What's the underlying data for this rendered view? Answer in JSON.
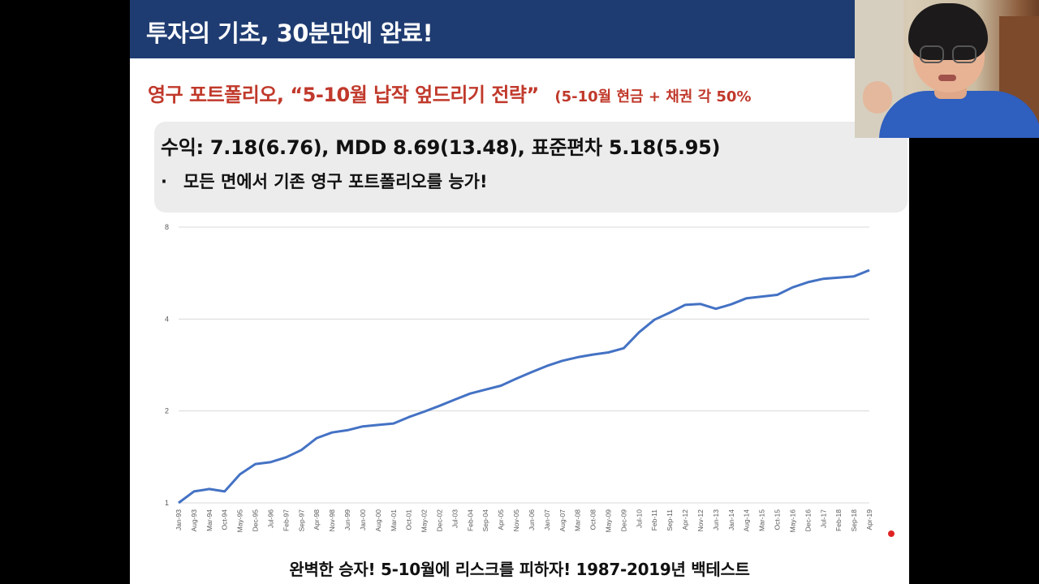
{
  "slide": {
    "header_title": "투자의 기초, 30분만에 완료!",
    "subtitle_main": "영구 포트폴리오, “5-10월 납작 엎드리기 전략”",
    "subtitle_sub": "(5-10월 현금 + 채권 각 50%",
    "summary_line": "수익: 7.18(6.76), MDD 8.69(13.48), 표준편차 5.18(5.95)",
    "bullet_marker": "·",
    "bullet_text": "모든 면에서 기존 영구 포트폴리오를 능가!",
    "caption": "완벽한 승자! 5-10월에 리스크를 피하자! 1987-2019년 백테스트"
  },
  "colors": {
    "header_bg": "#1f3c72",
    "subtitle": "#c0392b",
    "line": "#4472c4",
    "grid": "#d9d9d9",
    "summary_bg": "#ececec",
    "record": "#e02424"
  },
  "webcam": {
    "icon": "presenter-webcam"
  },
  "record_indicator": {
    "icon": "record-dot-icon"
  },
  "chart_data": {
    "type": "line",
    "title": "",
    "xlabel": "",
    "ylabel": "",
    "ylim": [
      1,
      8
    ],
    "yticks": [
      1,
      2,
      4,
      8
    ],
    "y_scale": "log2",
    "grid": true,
    "legend": "none",
    "categories": [
      "Jan-93",
      "Aug-93",
      "Mar-94",
      "Oct-94",
      "May-95",
      "Dec-95",
      "Jul-96",
      "Feb-97",
      "Sep-97",
      "Apr-98",
      "Nov-98",
      "Jun-99",
      "Jan-00",
      "Aug-00",
      "Mar-01",
      "Oct-01",
      "May-02",
      "Dec-02",
      "Jul-03",
      "Feb-04",
      "Sep-04",
      "Apr-05",
      "Nov-05",
      "Jun-06",
      "Jan-07",
      "Aug-07",
      "Mar-08",
      "Oct-08",
      "May-09",
      "Dec-09",
      "Jul-10",
      "Feb-11",
      "Sep-11",
      "Apr-12",
      "Nov-12",
      "Jun-13",
      "Jan-14",
      "Aug-14",
      "Mar-15",
      "Oct-15",
      "May-16",
      "Dec-16",
      "Jul-17",
      "Feb-18",
      "Sep-18",
      "Apr-19"
    ],
    "series": [
      {
        "values": [
          1.0,
          1.09,
          1.11,
          1.09,
          1.24,
          1.34,
          1.36,
          1.41,
          1.49,
          1.63,
          1.7,
          1.73,
          1.78,
          1.8,
          1.82,
          1.91,
          1.99,
          2.08,
          2.18,
          2.28,
          2.35,
          2.42,
          2.55,
          2.68,
          2.81,
          2.92,
          3.0,
          3.06,
          3.11,
          3.21,
          3.62,
          3.98,
          4.2,
          4.45,
          4.48,
          4.32,
          4.47,
          4.68,
          4.74,
          4.8,
          5.08,
          5.28,
          5.42,
          5.47,
          5.52,
          5.78
        ]
      }
    ]
  }
}
